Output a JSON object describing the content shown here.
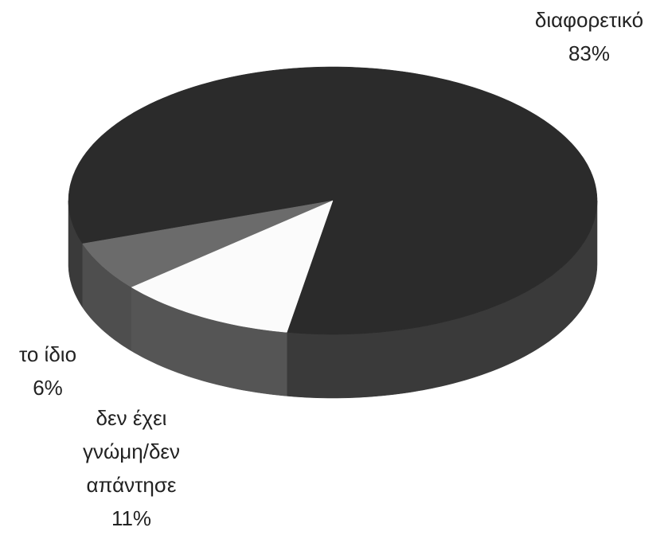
{
  "chart_data": {
    "type": "pie",
    "categories": [
      "διαφορετικό",
      "το ίδιο",
      "δεν έχει γνώμη/δεν απάντησε"
    ],
    "values": [
      83,
      6,
      11
    ],
    "value_labels": [
      "83%",
      "6%",
      "11%"
    ],
    "colors": [
      "#2b2b2b",
      "#6b6b6b",
      "#fbfbfb"
    ],
    "side_colors": [
      "#3a3a3a",
      "#4e4e4e",
      "#555555"
    ]
  }
}
